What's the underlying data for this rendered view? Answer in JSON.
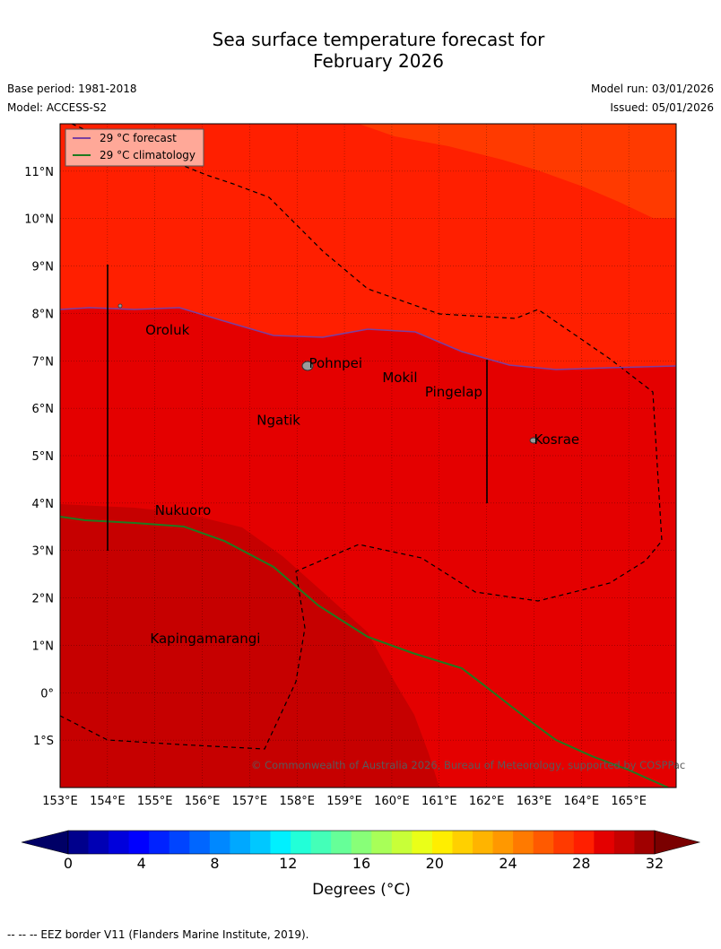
{
  "title": {
    "line1": "Sea surface temperature forecast for",
    "line2": "February 2026"
  },
  "meta": {
    "base_period": "Base period: 1981-2018",
    "model": "Model: ACCESS-S2",
    "model_run": "Model run: 03/01/2026",
    "issued": "Issued: 05/01/2026"
  },
  "map": {
    "lon_range": [
      153,
      166
    ],
    "lat_range": [
      -2,
      12
    ],
    "lon_ticks": [
      "153°E",
      "154°E",
      "155°E",
      "156°E",
      "157°E",
      "158°E",
      "159°E",
      "160°E",
      "161°E",
      "162°E",
      "163°E",
      "164°E",
      "165°E"
    ],
    "lat_ticks": [
      "1°S",
      "0°",
      "1°N",
      "2°N",
      "3°N",
      "4°N",
      "5°N",
      "6°N",
      "7°N",
      "8°N",
      "9°N",
      "10°N",
      "11°N"
    ],
    "grid": true,
    "legend": [
      {
        "label": "29 °C  forecast",
        "color": "#7b3fa0"
      },
      {
        "label": "29 °C  climatology",
        "color": "#1f7a1f"
      }
    ],
    "places": [
      {
        "name": "Oroluk",
        "lon": 154.8,
        "lat": 7.55
      },
      {
        "name": "Pohnpei",
        "lon": 158.25,
        "lat": 6.85
      },
      {
        "name": "Mokil",
        "lon": 159.8,
        "lat": 6.55
      },
      {
        "name": "Pingelap",
        "lon": 160.7,
        "lat": 6.25
      },
      {
        "name": "Ngatik",
        "lon": 157.15,
        "lat": 5.65
      },
      {
        "name": "Kosrae",
        "lon": 163.0,
        "lat": 5.25
      },
      {
        "name": "Nukuoro",
        "lon": 155.0,
        "lat": 3.75
      },
      {
        "name": "Kapingamarangi",
        "lon": 154.9,
        "lat": 1.05
      }
    ],
    "copyright": "© Commonwealth of Australia 2026, Bureau of Meteorology, supported by COSPPac",
    "colors": {
      "t29_30": "#ff1f00",
      "t30_31": "#e40000",
      "t31_32": "#c60000",
      "t28_29": "#ff3a00"
    }
  },
  "colorbar": {
    "ticks": [
      "0",
      "4",
      "8",
      "12",
      "16",
      "20",
      "24",
      "28",
      "32"
    ],
    "label": "Degrees (°C)",
    "colors": [
      "#00008c",
      "#0000b4",
      "#0000dc",
      "#0000ff",
      "#0022ff",
      "#0044ff",
      "#0066ff",
      "#0088ff",
      "#00a8ff",
      "#00c8ff",
      "#00f0ff",
      "#22ffd8",
      "#44ffb8",
      "#66ff98",
      "#88ff78",
      "#a8ff58",
      "#c8ff38",
      "#eaff18",
      "#ffee00",
      "#ffd000",
      "#ffb400",
      "#ff9800",
      "#ff7a00",
      "#ff5a00",
      "#ff3a00",
      "#ff1f00",
      "#e40000",
      "#c60000",
      "#a00000"
    ],
    "low_color": "#000066",
    "high_color": "#7a0000"
  },
  "footer": "--  --  -- EEZ border V11 (Flanders Marine Institute, 2019)."
}
